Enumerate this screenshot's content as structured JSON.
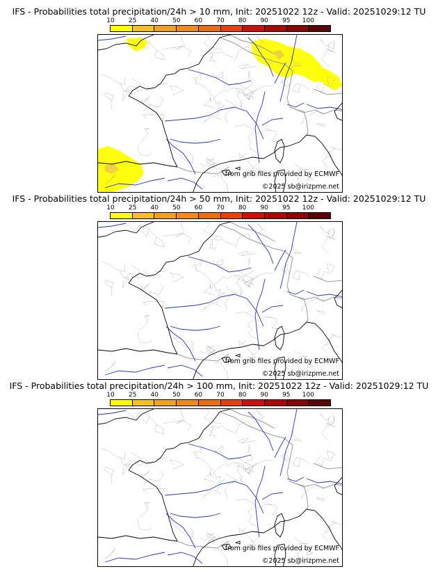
{
  "legend": {
    "ticks": [
      "10",
      "25",
      "40",
      "50",
      "60",
      "70",
      "80",
      "90",
      "95",
      "100"
    ],
    "colors": [
      "#ffff00",
      "#f5c020",
      "#f0a020",
      "#ee8a18",
      "#ec6c10",
      "#e84010",
      "#cc1010",
      "#a80a0a",
      "#880808",
      "#5a0606"
    ]
  },
  "panels": [
    {
      "title": "IFS - Probabilities total precipitation/24h > 10 mm, Init: 20251022 12z - Valid: 20251029:12 TU",
      "source_credit": "from grib files provided by ECMWF",
      "copyright": "©2025 sb@irizpme.net",
      "has_precip": true
    },
    {
      "title": "IFS - Probabilities total precipitation/24h > 50 mm, Init: 20251022 12z - Valid: 20251029:12 TU",
      "source_credit": "from grib files provided by ECMWF",
      "copyright": "©2025 sb@irizpme.net",
      "has_precip": false
    },
    {
      "title": "IFS - Probabilities total precipitation/24h > 100 mm, Init: 20251022 12z - Valid: 20251029:12 TU",
      "source_credit": "from grib files provided by ECMWF",
      "copyright": "©2025 sb@irizpme.net",
      "has_precip": false
    }
  ],
  "colors": {
    "coast": "#000000",
    "rivers": "#2233cc",
    "borders": "#9a9a9a",
    "precip_low": "#ffff00",
    "precip_mid": "#f0d040"
  }
}
